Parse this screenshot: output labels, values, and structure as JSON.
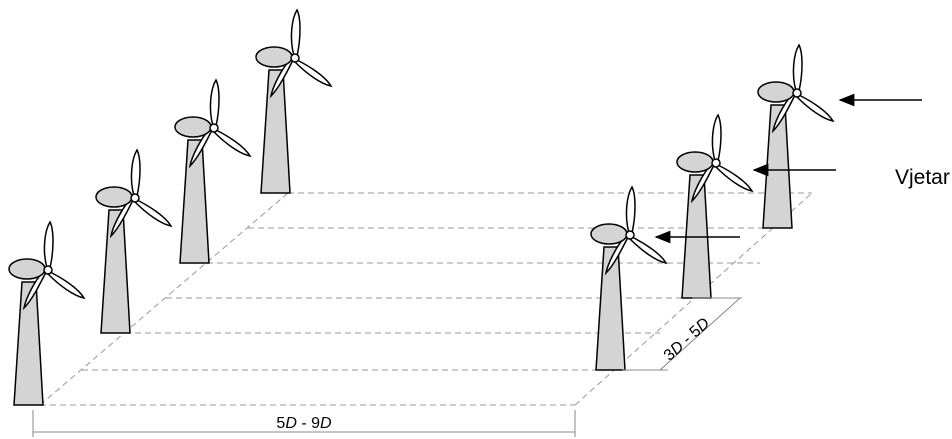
{
  "wind_label": "Vjetar",
  "row_spacing": {
    "prefix": "5",
    "unit": "D",
    "separator": " - ",
    "value": "9"
  },
  "column_spacing": {
    "prefix": "3",
    "unit": "D",
    "separator": " - ",
    "value": "5"
  }
}
